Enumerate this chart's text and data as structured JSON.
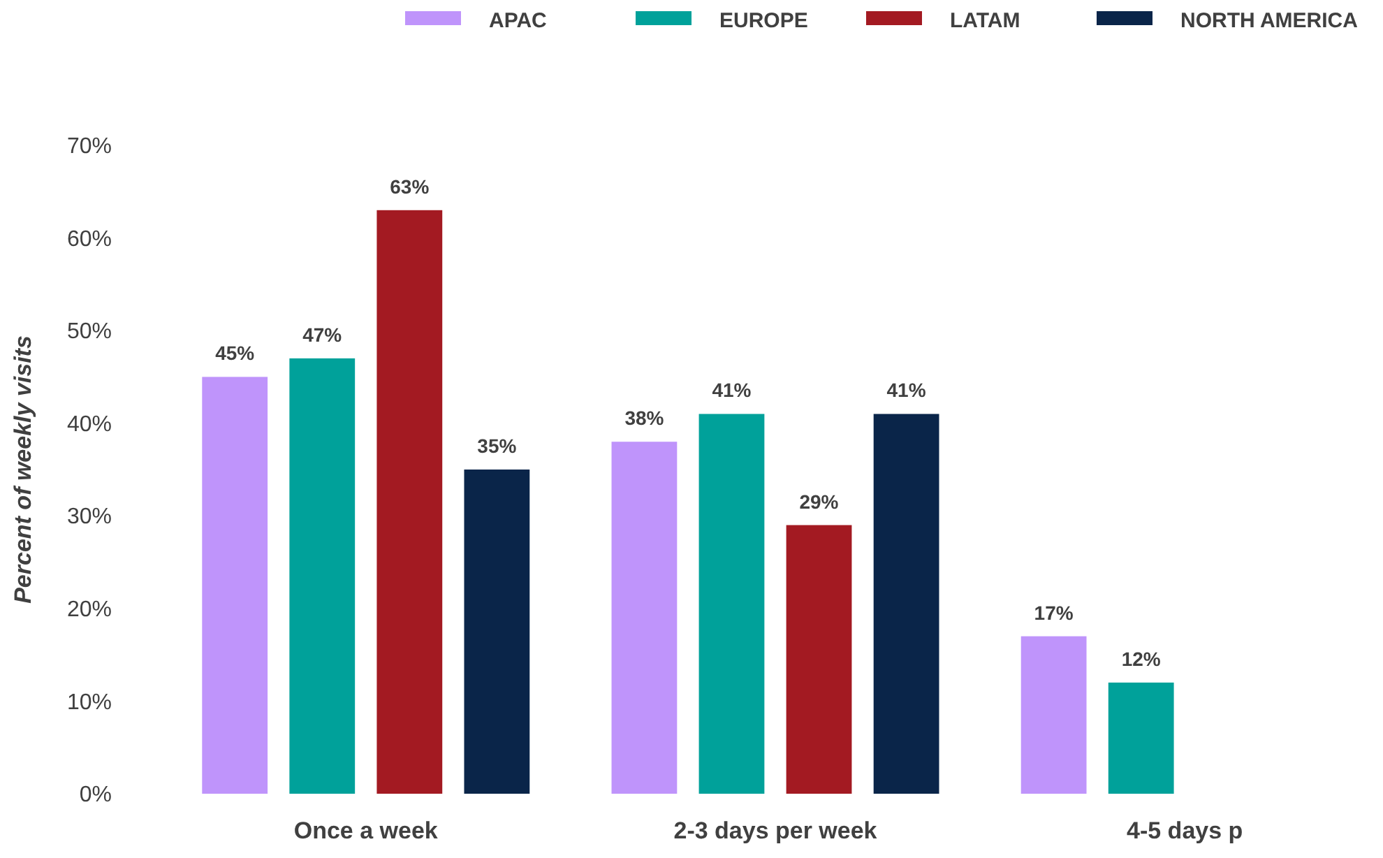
{
  "chart_data": {
    "type": "bar",
    "ylabel": "Percent of weekly visits",
    "categories": [
      "Once a week",
      "2-3 days per week",
      "4-5 days p"
    ],
    "series": [
      {
        "name": "APAC",
        "color": "#bf94fb",
        "values": [
          45,
          38,
          17
        ],
        "value_labels": [
          "45%",
          "38%",
          "17%"
        ]
      },
      {
        "name": "EUROPE",
        "color": "#00a19a",
        "values": [
          47,
          41,
          12
        ],
        "value_labels": [
          "47%",
          "41%",
          "12%"
        ]
      },
      {
        "name": "LATAM",
        "color": "#a31a22",
        "values": [
          63,
          29,
          null
        ],
        "value_labels": [
          "63%",
          "29%",
          null
        ]
      },
      {
        "name": "NORTH AMERICA",
        "color": "#0a2549",
        "values": [
          35,
          41,
          null
        ],
        "value_labels": [
          "35%",
          "41%",
          null
        ]
      }
    ],
    "ylim": [
      0,
      70
    ],
    "yticks": [
      {
        "value": 0,
        "label": "0%"
      },
      {
        "value": 10,
        "label": "10%"
      },
      {
        "value": 20,
        "label": "20%"
      },
      {
        "value": 30,
        "label": "30%"
      },
      {
        "value": 40,
        "label": "40%"
      },
      {
        "value": 50,
        "label": "50%"
      },
      {
        "value": 60,
        "label": "60%"
      },
      {
        "value": 70,
        "label": "70%"
      }
    ],
    "legend": "top right",
    "grid": false
  }
}
